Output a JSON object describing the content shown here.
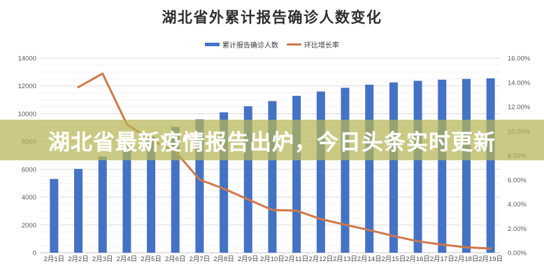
{
  "chart": {
    "title": "湖北省外累计报告确诊人数变化",
    "legend": [
      {
        "label": "累计报告确诊人数",
        "type": "bar"
      },
      {
        "label": "环比增长率",
        "type": "line"
      }
    ]
  },
  "overlay": {
    "text": "湖北省最新疫情报告出炉，今日头条实时更新"
  },
  "colors": {
    "bar": "#4472c4",
    "line": "#d0784a",
    "band": "rgba(181,182,85,0.72)",
    "band_text": "#ffffff",
    "grid_major": "#dcdcdc",
    "grid_minor": "#f2f2f2",
    "axis_line": "#c9c9c9",
    "tick_label": "#595959",
    "x_label": "#4a4a4a",
    "background": "#ffffff"
  },
  "chart_data": {
    "type": "bar+line combo",
    "title": "湖北省外累计报告确诊人数变化",
    "grid": true,
    "legend_position": "top",
    "categories": [
      "2月1日",
      "2月2日",
      "2月3日",
      "2月4日",
      "2月5日",
      "2月6日",
      "2月7日",
      "2月8日",
      "2月9日",
      "2月10日",
      "2月11日",
      "2月12日",
      "2月13日",
      "2月14日",
      "2月15日",
      "2月16日",
      "2月17日",
      "2月18日",
      "2月19日"
    ],
    "series": [
      {
        "name": "累计报告确诊人数",
        "type": "bar",
        "axis": "left",
        "values": [
          5306,
          6028,
          6916,
          7646,
          8353,
          9049,
          9593,
          10098,
          10540,
          10910,
          11287,
          11598,
          11865,
          12086,
          12251,
          12366,
          12447,
          12503,
          12545
        ]
      },
      {
        "name": "环比增长率",
        "type": "line",
        "axis": "right",
        "unit": "%",
        "values": [
          null,
          13.61,
          14.73,
          10.56,
          9.25,
          8.33,
          6.01,
          5.26,
          4.38,
          3.51,
          3.46,
          2.76,
          2.3,
          1.86,
          1.37,
          0.94,
          0.66,
          0.45,
          0.34
        ]
      }
    ],
    "left_axis": {
      "min": 0,
      "max": 14000,
      "major_step": 2000,
      "minor_step": 500,
      "ticks": [
        "0",
        "2000",
        "4000",
        "6000",
        "8000",
        "10000",
        "12000",
        "14000"
      ]
    },
    "right_axis": {
      "min": 0,
      "max": 16,
      "major_step": 2,
      "ticks": [
        "0.00%",
        "2.00%",
        "4.00%",
        "6.00%",
        "8.00%",
        "10.00%",
        "12.00%",
        "14.00%",
        "16.00%"
      ]
    }
  }
}
